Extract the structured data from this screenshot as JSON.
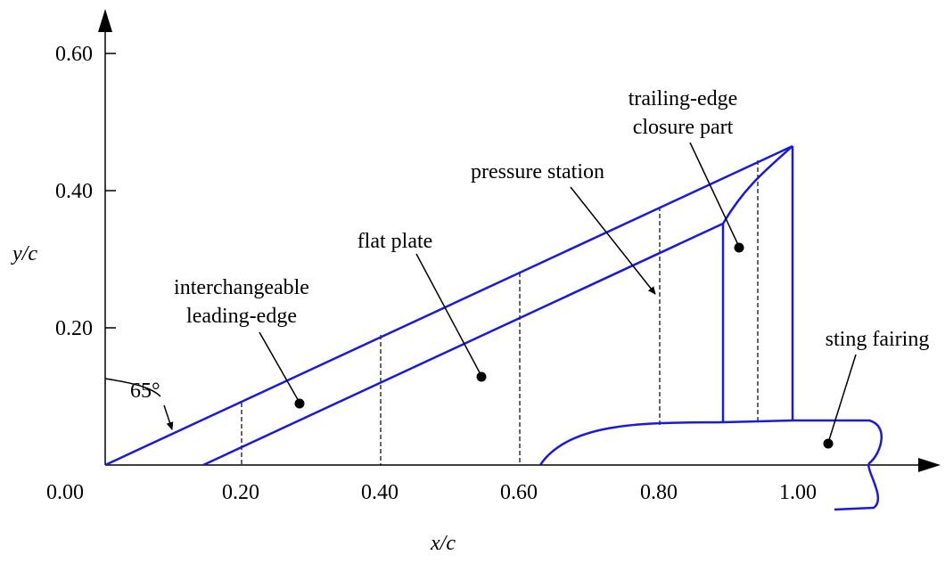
{
  "axes": {
    "x_label": "x/c",
    "y_label": "y/c",
    "x_ticks": [
      "0.00",
      "0.20",
      "0.40",
      "0.60",
      "0.80",
      "1.00"
    ],
    "y_ticks": [
      "0.20",
      "0.40",
      "0.60"
    ]
  },
  "annotations": {
    "angle": "65°",
    "leading_edge_line1": "interchangeable",
    "leading_edge_line2": "leading-edge",
    "flat_plate": "flat plate",
    "pressure_station": "pressure station",
    "trailing_edge_line1": "trailing-edge",
    "trailing_edge_line2": "closure part",
    "sting_fairing": "sting fairing"
  },
  "colors": {
    "model_outline": "#1a1adf",
    "axes": "#000000"
  }
}
